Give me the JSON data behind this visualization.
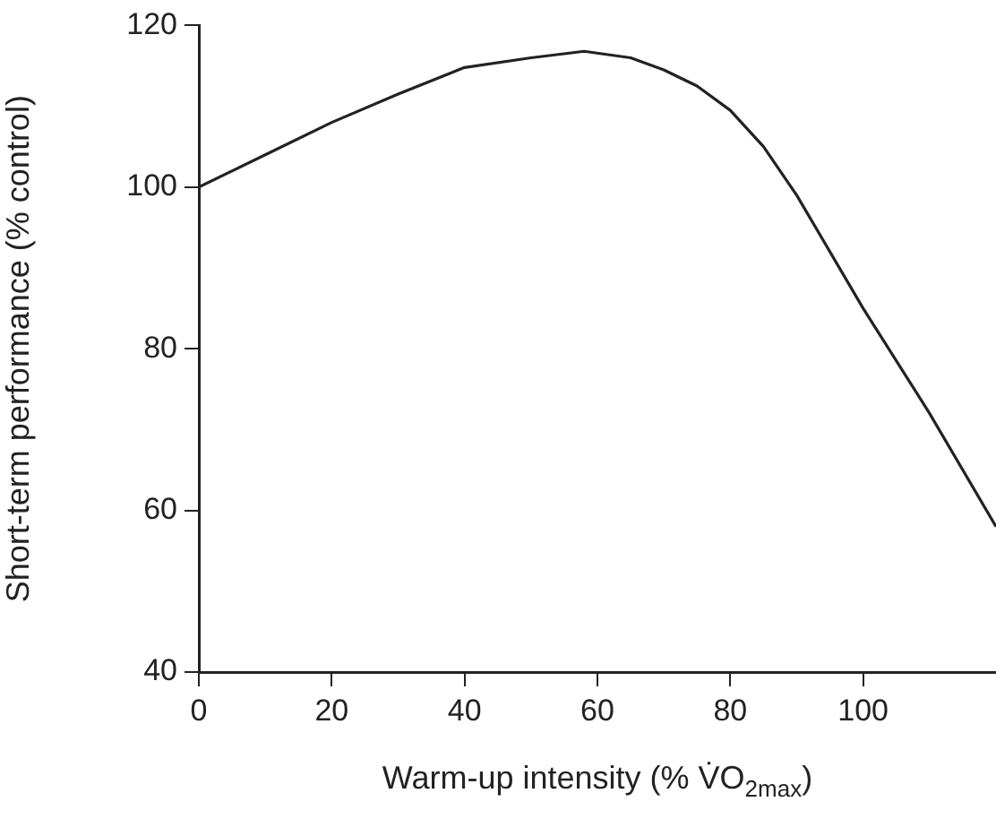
{
  "chart_data": {
    "type": "line",
    "xlabel": "Warm-up intensity (% V̇O$_{2max}$)",
    "ylabel": "Short-term performance (% control)",
    "x": [
      0,
      10,
      20,
      30,
      40,
      50,
      58,
      65,
      70,
      75,
      80,
      85,
      90,
      100,
      110,
      120
    ],
    "series": [
      {
        "color": "#222222",
        "values": [
          100,
          104,
          108,
          111.5,
          114.8,
          116,
          116.8,
          116,
          114.5,
          112.5,
          109.5,
          105,
          99,
          85,
          72,
          58
        ]
      }
    ],
    "xlim": [
      0,
      120
    ],
    "xticks": [
      0,
      20,
      40,
      60,
      80,
      100
    ],
    "ylim": [
      40,
      120
    ],
    "yticks": [
      40,
      60,
      80,
      100,
      120
    ],
    "grid": false,
    "legend": false,
    "marker": "none",
    "line_style": "solid"
  }
}
